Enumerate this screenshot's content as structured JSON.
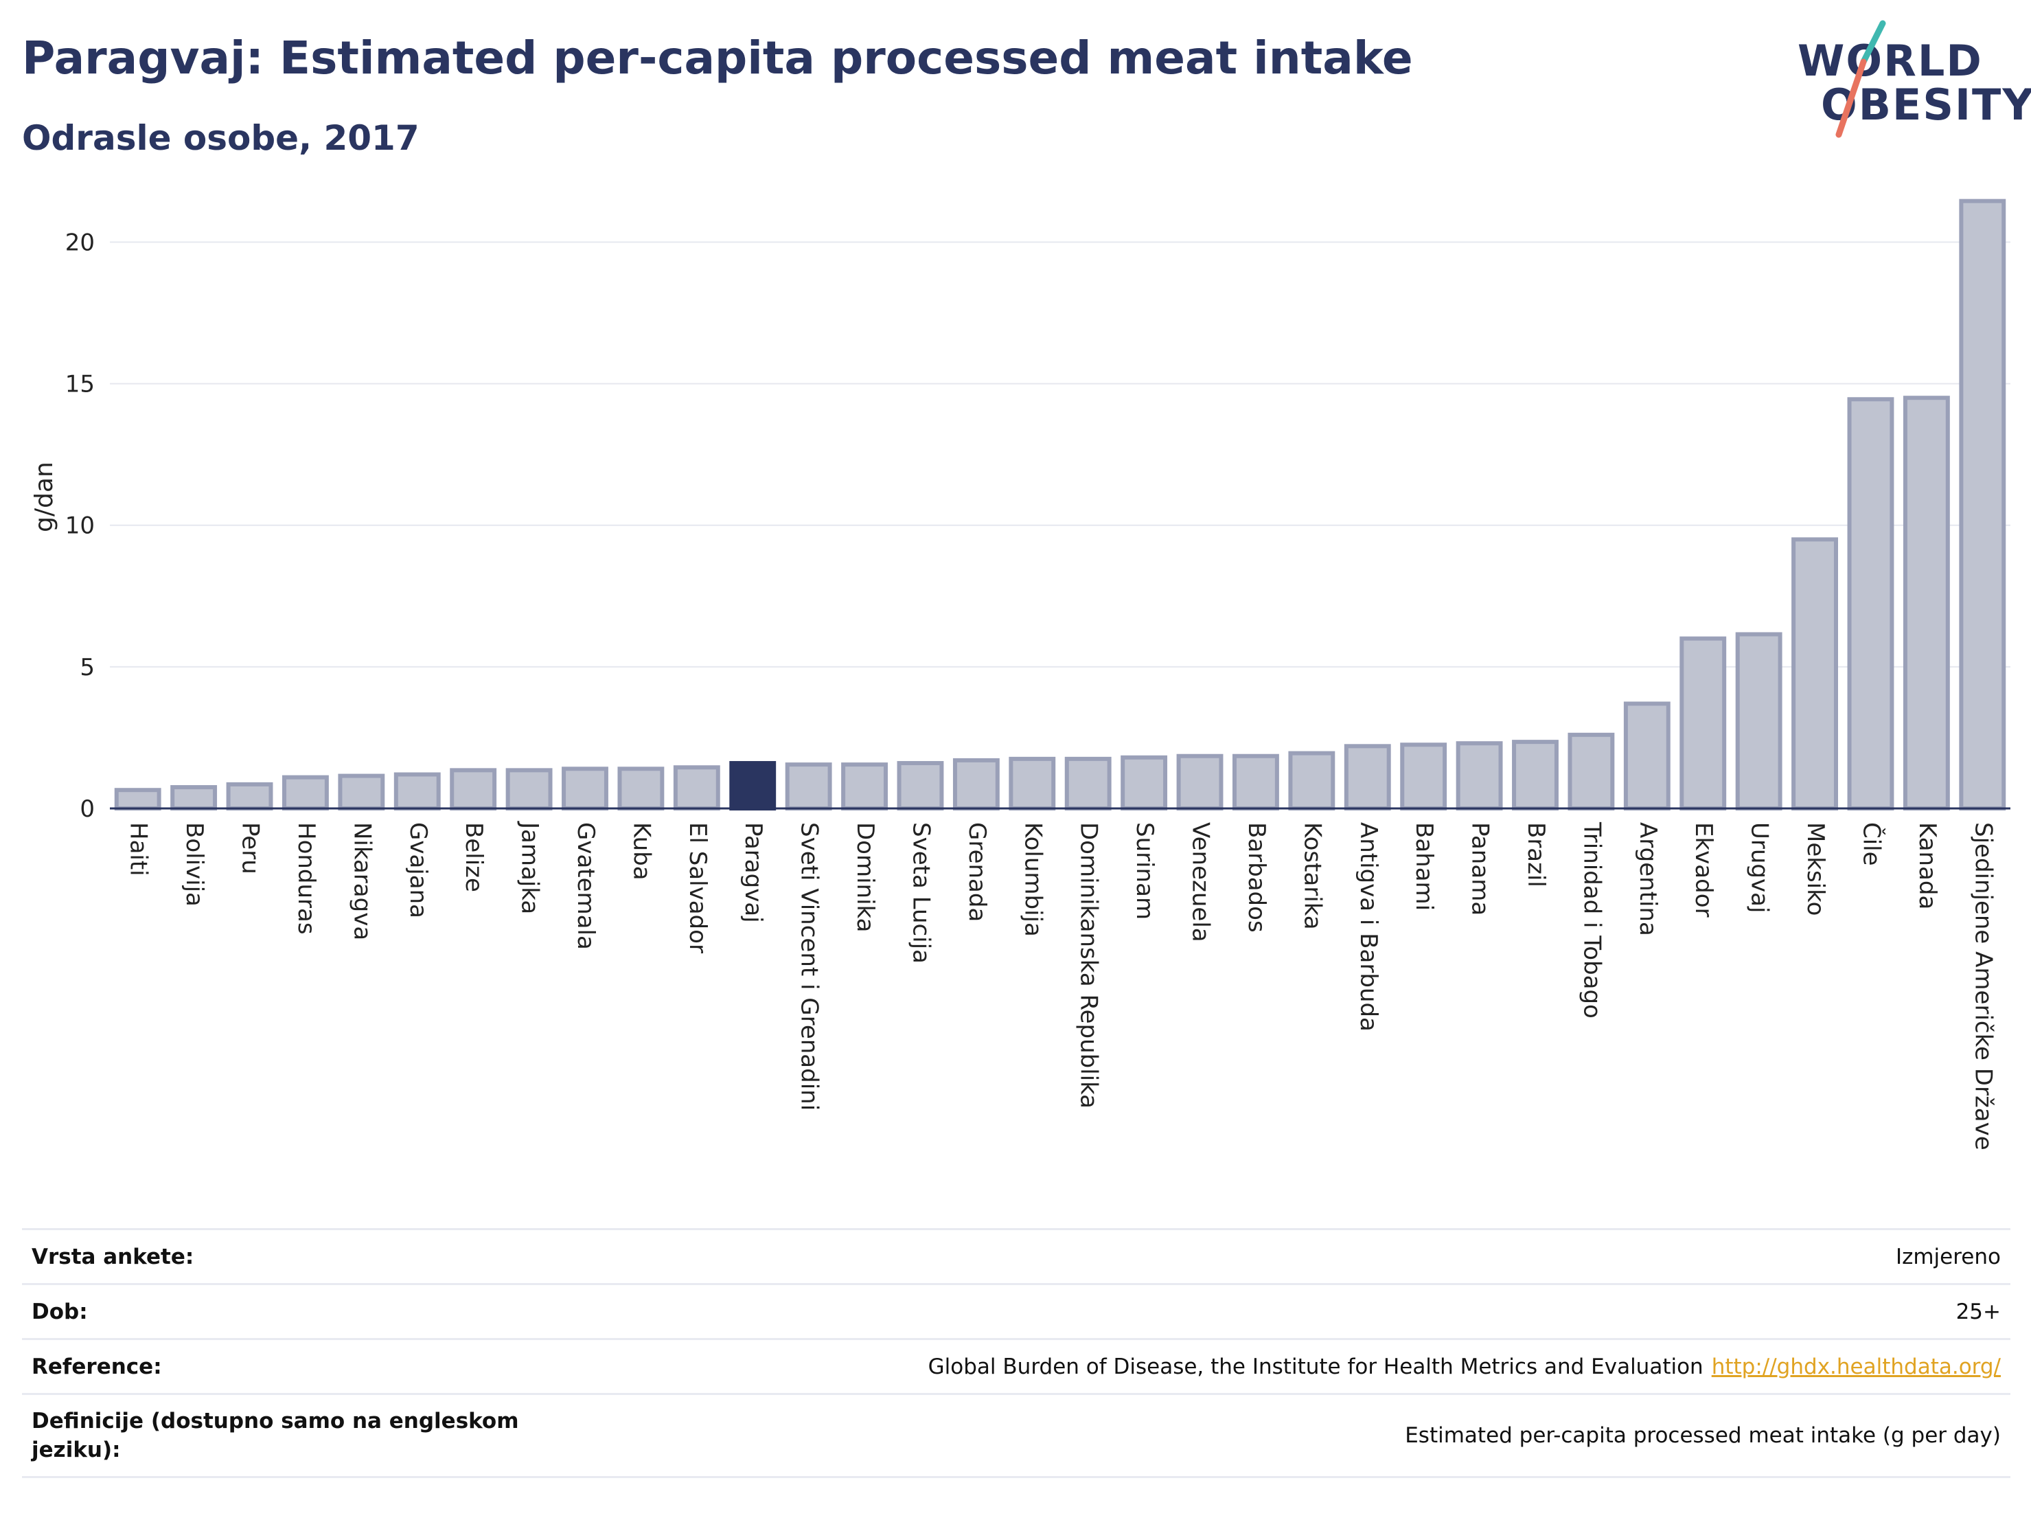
{
  "header": {
    "title": "Paragvaj: Estimated per-capita processed meat intake",
    "subtitle": "Odrasle osobe, 2017"
  },
  "logo": {
    "line1": "WORLD",
    "line2": "OBESITY"
  },
  "colors": {
    "bar": "#bfc3d0",
    "bar_border": "#9aa0b8",
    "highlight": "#2a3560",
    "accent_teal": "#3fb8b0",
    "accent_coral": "#e8735f",
    "link": "#e0a322"
  },
  "chart_data": {
    "type": "bar",
    "ylabel": "g/dan",
    "ylim": [
      0,
      22
    ],
    "yticks": [
      0,
      5,
      10,
      15,
      20
    ],
    "grid": true,
    "highlight": "Paragvaj",
    "categories": [
      "Haiti",
      "Bolivija",
      "Peru",
      "Honduras",
      "Nikaragva",
      "Gvajana",
      "Belize",
      "Jamajka",
      "Gvatemala",
      "Kuba",
      "El Salvador",
      "Paragvaj",
      "Sveti Vincent i Grenadini",
      "Dominika",
      "Sveta Lucija",
      "Grenada",
      "Kolumbija",
      "Dominikanska Republika",
      "Surinam",
      "Venezuela",
      "Barbados",
      "Kostarika",
      "Antigva i Barbuda",
      "Bahami",
      "Panama",
      "Brazil",
      "Trinidad i Tobago",
      "Argentina",
      "Ekvador",
      "Urugvaj",
      "Meksiko",
      "Čile",
      "Kanada",
      "Sjedinjene Američke Države"
    ],
    "values": [
      0.65,
      0.75,
      0.85,
      1.1,
      1.15,
      1.2,
      1.35,
      1.35,
      1.4,
      1.4,
      1.45,
      1.6,
      1.55,
      1.55,
      1.6,
      1.7,
      1.75,
      1.75,
      1.8,
      1.85,
      1.85,
      1.95,
      2.2,
      2.25,
      2.3,
      2.35,
      2.6,
      3.7,
      6.0,
      6.15,
      9.5,
      14.45,
      14.5,
      21.45
    ]
  },
  "info_table": [
    {
      "label": "Vrsta ankete:",
      "value": "Izmjereno"
    },
    {
      "label": "Dob:",
      "value": "25+"
    },
    {
      "label": "Reference:",
      "value": "Global Burden of Disease, the Institute for Health Metrics and Evaluation",
      "link": "http://ghdx.healthdata.org/"
    },
    {
      "label": "Definicije (dostupno samo na engleskom jeziku):",
      "value": "Estimated per-capita processed meat intake (g per day)"
    }
  ]
}
